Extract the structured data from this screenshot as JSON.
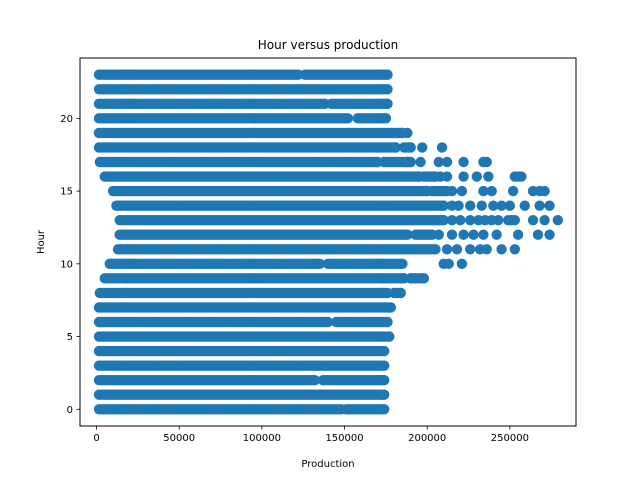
{
  "chart_data": {
    "type": "scatter",
    "title": "Hour versus production",
    "xlabel": "Production",
    "ylabel": "Hour",
    "xlim": [
      -10000,
      290000
    ],
    "ylim": [
      -1.15,
      24.15
    ],
    "xticks": [
      0,
      50000,
      100000,
      150000,
      200000,
      250000
    ],
    "xtick_labels": [
      "0",
      "50000",
      "100000",
      "150000",
      "200000",
      "250000"
    ],
    "yticks": [
      0,
      5,
      10,
      15,
      20
    ],
    "ytick_labels": [
      "0",
      "5",
      "10",
      "15",
      "20"
    ],
    "grid": false,
    "marker_color": "#1f77b4",
    "rows": [
      {
        "hour": 0,
        "segments": [
          [
            1500,
            148000
          ],
          [
            151000,
            174000
          ]
        ]
      },
      {
        "hour": 1,
        "segments": [
          [
            1500,
            174000
          ]
        ]
      },
      {
        "hour": 2,
        "segments": [
          [
            1500,
            132000
          ],
          [
            137000,
            174000
          ]
        ]
      },
      {
        "hour": 3,
        "segments": [
          [
            1500,
            174000
          ]
        ]
      },
      {
        "hour": 4,
        "segments": [
          [
            1500,
            174000
          ]
        ]
      },
      {
        "hour": 5,
        "segments": [
          [
            1500,
            177000
          ]
        ]
      },
      {
        "hour": 6,
        "segments": [
          [
            1500,
            140000
          ],
          [
            145000,
            176000
          ]
        ]
      },
      {
        "hour": 7,
        "segments": [
          [
            1500,
            178000
          ]
        ]
      },
      {
        "hour": 8,
        "segments": [
          [
            2000,
            176000
          ],
          [
            180000,
            184000
          ]
        ]
      },
      {
        "hour": 9,
        "segments": [
          [
            5000,
            186000
          ],
          [
            190000,
            193000
          ],
          [
            195000,
            198000
          ]
        ]
      },
      {
        "hour": 10,
        "segments": [
          [
            8000,
            135000
          ],
          [
            140000,
            185000
          ]
        ]
      },
      {
        "hour": 11,
        "segments": [
          [
            13000,
            205000
          ]
        ]
      },
      {
        "hour": 12,
        "segments": [
          [
            14000,
            188000
          ],
          [
            193000,
            203000
          ]
        ]
      },
      {
        "hour": 13,
        "segments": [
          [
            14000,
            210000
          ]
        ]
      },
      {
        "hour": 14,
        "segments": [
          [
            12000,
            210000
          ]
        ]
      },
      {
        "hour": 15,
        "segments": [
          [
            10000,
            200000
          ],
          [
            203000,
            212000
          ]
        ]
      },
      {
        "hour": 16,
        "segments": [
          [
            5000,
            195000
          ],
          [
            198000,
            205000
          ]
        ]
      },
      {
        "hour": 17,
        "segments": [
          [
            2000,
            170000
          ],
          [
            174000,
            190000
          ]
        ]
      },
      {
        "hour": 18,
        "segments": [
          [
            1500,
            181000
          ],
          [
            186000,
            190000
          ]
        ]
      },
      {
        "hour": 19,
        "segments": [
          [
            1500,
            185000
          ]
        ]
      },
      {
        "hour": 20,
        "segments": [
          [
            1500,
            152000
          ],
          [
            158000,
            175000
          ]
        ]
      },
      {
        "hour": 21,
        "segments": [
          [
            1500,
            138000
          ],
          [
            142000,
            176000
          ]
        ]
      },
      {
        "hour": 22,
        "segments": [
          [
            1500,
            176000
          ]
        ]
      },
      {
        "hour": 23,
        "segments": [
          [
            1500,
            122000
          ],
          [
            126000,
            176000
          ]
        ]
      }
    ],
    "outliers": [
      {
        "hour": 9,
        "x": [
          190000,
          193000
        ]
      },
      {
        "hour": 10,
        "x": [
          210000,
          213000,
          221000
        ]
      },
      {
        "hour": 11,
        "x": [
          212000,
          218000,
          226000,
          232000,
          236000,
          245000,
          253000
        ]
      },
      {
        "hour": 12,
        "x": [
          207000,
          215000,
          222000,
          228000,
          234000,
          242000,
          255000,
          267000,
          274000
        ]
      },
      {
        "hour": 13,
        "x": [
          215000,
          220000,
          226000,
          231000,
          235000,
          239000,
          243000,
          249000,
          251000,
          253000,
          264000,
          271000,
          279000
        ]
      },
      {
        "hour": 14,
        "x": [
          215000,
          219000,
          226000,
          233000,
          240000,
          245000,
          250000,
          259000,
          268000,
          274000
        ]
      },
      {
        "hour": 15,
        "x": [
          215000,
          221000,
          234000,
          239000,
          252000,
          264000,
          268000,
          271000
        ]
      },
      {
        "hour": 16,
        "x": [
          208000,
          212000,
          222000,
          230000,
          237000,
          253000,
          255000,
          257000
        ]
      },
      {
        "hour": 17,
        "x": [
          188000,
          196000,
          207000,
          212000,
          222000,
          234000,
          236000
        ]
      },
      {
        "hour": 18,
        "x": [
          197000,
          209000
        ]
      },
      {
        "hour": 19,
        "x": [
          188000
        ]
      }
    ]
  }
}
